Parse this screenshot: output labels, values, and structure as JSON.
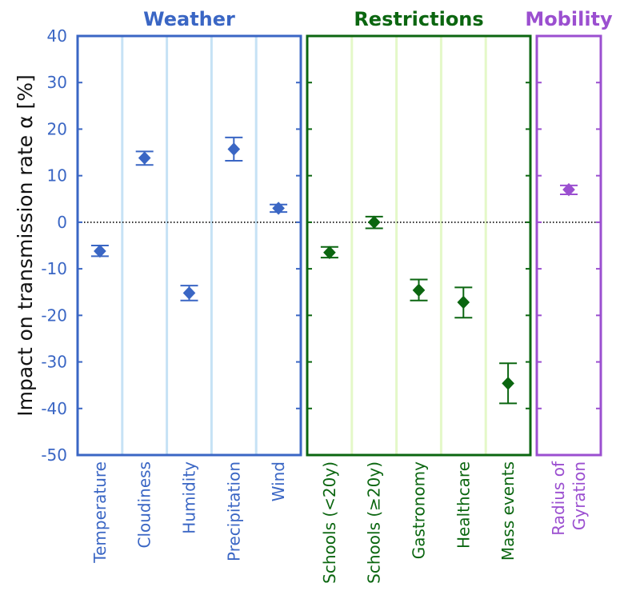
{
  "chart_data": {
    "type": "scatter",
    "ylabel": "Impact on transmission rate α [%]",
    "ylim": [
      -50,
      40
    ],
    "yticks": [
      40,
      30,
      20,
      10,
      0,
      -10,
      -20,
      -30,
      -40,
      -50
    ],
    "ytick_labels": [
      "40",
      "30",
      "20",
      "10",
      "0",
      "-10",
      "-20",
      "-30",
      "-40",
      "-50"
    ],
    "reference_line": {
      "y": 0,
      "style": "dotted"
    },
    "panels": [
      {
        "title": "Weather",
        "color": "#3a66c4",
        "divider_color": "#c6e2f5",
        "categories": [
          "Temperature",
          "Cloudiness",
          "Humidity",
          "Precipitation",
          "Wind"
        ],
        "values": [
          -6.2,
          13.8,
          -15.2,
          15.7,
          3.0
        ],
        "err_low": [
          -7.3,
          12.3,
          -16.8,
          13.2,
          2.2
        ],
        "err_high": [
          -5.0,
          15.2,
          -13.6,
          18.2,
          3.8
        ]
      },
      {
        "title": "Restrictions",
        "color": "#0b6610",
        "divider_color": "#e4f8c8",
        "categories": [
          "Schools (<20y)",
          "Schools (≥20y)",
          "Gastronomy",
          "Healthcare",
          "Mass events"
        ],
        "values": [
          -6.5,
          0.0,
          -14.6,
          -17.2,
          -34.6
        ],
        "err_low": [
          -7.6,
          -1.3,
          -16.8,
          -20.5,
          -38.9
        ],
        "err_high": [
          -5.3,
          1.2,
          -12.3,
          -14.0,
          -30.3
        ]
      },
      {
        "title": "Mobility",
        "color": "#9b4fd0",
        "divider_color": "#eadcf5",
        "categories": [
          "Radius of\nGyration"
        ],
        "values": [
          7.0
        ],
        "err_low": [
          6.0
        ],
        "err_high": [
          7.9
        ]
      }
    ],
    "grid": false,
    "legend": "none"
  }
}
